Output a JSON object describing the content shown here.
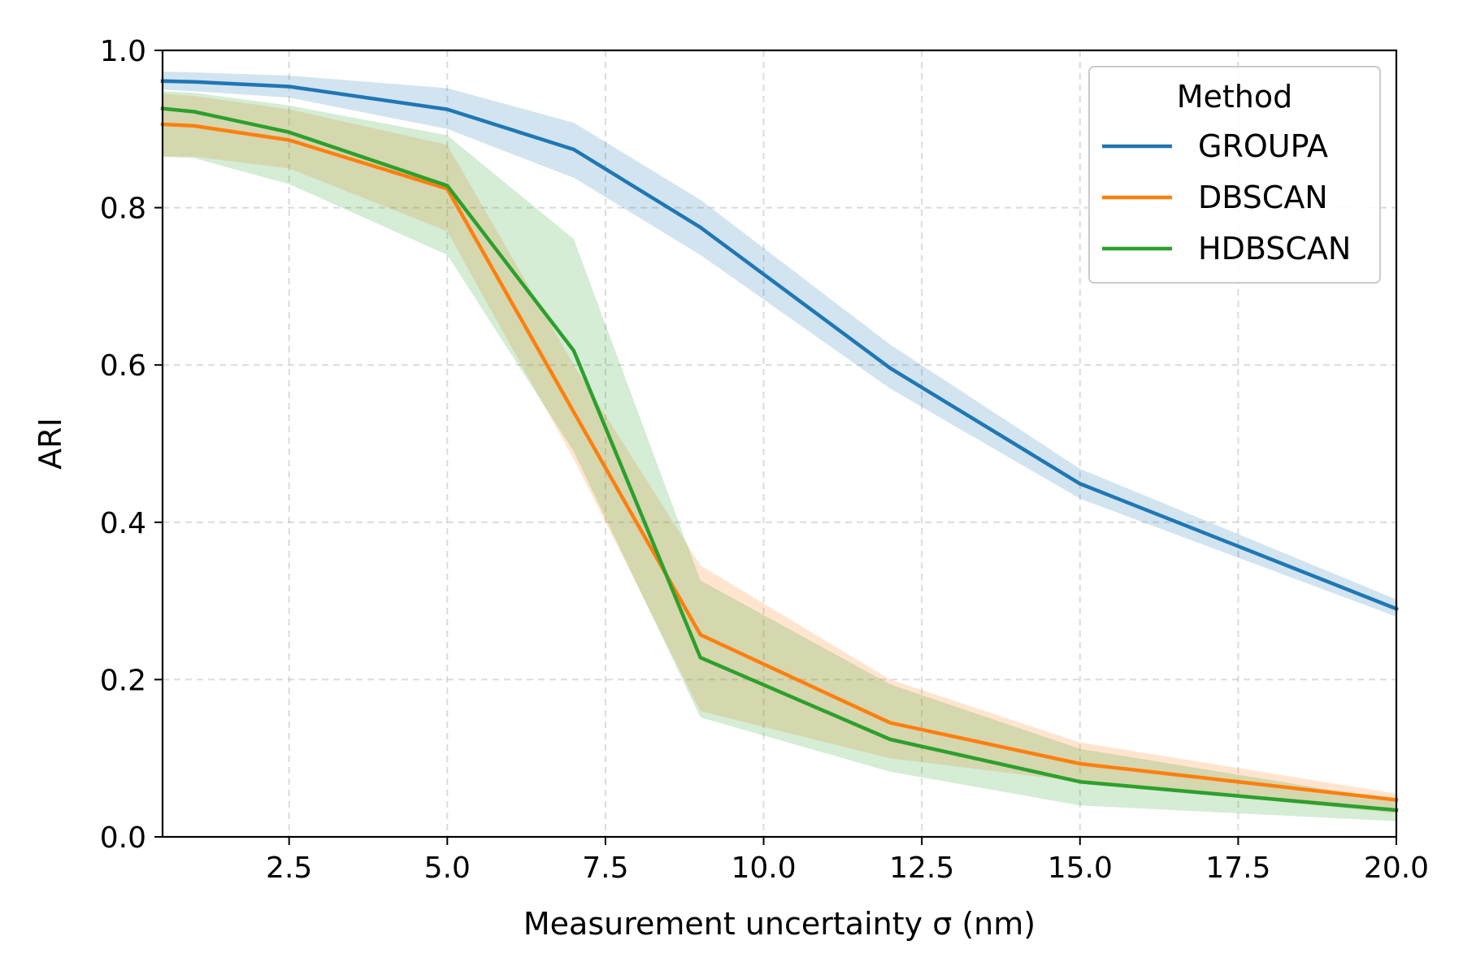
{
  "chart_data": {
    "type": "line",
    "xlabel": "Measurement uncertainty σ (nm)",
    "ylabel": "ARI",
    "xlim": [
      0.5,
      20.0
    ],
    "ylim": [
      0.0,
      1.0
    ],
    "grid": true,
    "legend": {
      "title": "Method",
      "position": "top-right"
    },
    "x_ticks": [
      "2.5",
      "5.0",
      "7.5",
      "10.0",
      "12.5",
      "15.0",
      "17.5",
      "20.0"
    ],
    "x_tick_values": [
      2.5,
      5.0,
      7.5,
      10.0,
      12.5,
      15.0,
      17.5,
      20.0
    ],
    "y_ticks": [
      "0.0",
      "0.2",
      "0.4",
      "0.6",
      "0.8",
      "1.0"
    ],
    "y_tick_values": [
      0.0,
      0.2,
      0.4,
      0.6,
      0.8,
      1.0
    ],
    "x": [
      0.5,
      1,
      2.5,
      5,
      7,
      9,
      12,
      15,
      20
    ],
    "series": [
      {
        "name": "GROUPA",
        "color": "#1f77b4",
        "values": [
          0.961,
          0.96,
          0.954,
          0.925,
          0.874,
          0.775,
          0.596,
          0.449,
          0.29
        ],
        "lower": [
          0.95,
          0.948,
          0.94,
          0.9,
          0.838,
          0.74,
          0.57,
          0.43,
          0.28
        ],
        "upper": [
          0.973,
          0.972,
          0.968,
          0.952,
          0.908,
          0.81,
          0.626,
          0.468,
          0.302
        ]
      },
      {
        "name": "DBSCAN",
        "color": "#ff7f0e",
        "values": [
          0.906,
          0.904,
          0.886,
          0.824,
          0.54,
          0.257,
          0.145,
          0.093,
          0.047
        ],
        "lower": [
          0.865,
          0.865,
          0.85,
          0.77,
          0.48,
          0.16,
          0.1,
          0.07,
          0.03
        ],
        "upper": [
          0.945,
          0.942,
          0.925,
          0.88,
          0.6,
          0.345,
          0.2,
          0.12,
          0.055
        ]
      },
      {
        "name": "HDBSCAN",
        "color": "#2ca02c",
        "values": [
          0.926,
          0.922,
          0.896,
          0.828,
          0.618,
          0.228,
          0.124,
          0.07,
          0.034
        ],
        "lower": [
          0.865,
          0.863,
          0.83,
          0.74,
          0.49,
          0.152,
          0.083,
          0.04,
          0.02
        ],
        "upper": [
          0.948,
          0.946,
          0.93,
          0.892,
          0.76,
          0.326,
          0.194,
          0.112,
          0.046
        ]
      }
    ]
  }
}
